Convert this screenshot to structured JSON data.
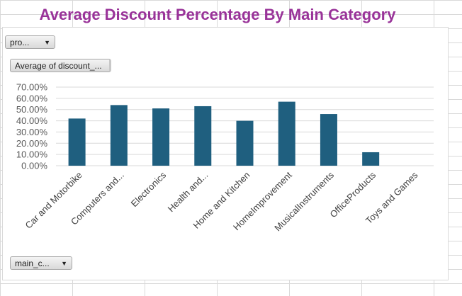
{
  "chart_data": {
    "type": "bar",
    "title": "Average Discount Percentage By Main Category",
    "categories": [
      "Car  and  Motorbike",
      "Computers  and...",
      "Electronics",
      "Health  and...",
      "Home  and  Kitchen",
      "HomeImprovement",
      "MusicalInstruments",
      "OfficeProducts",
      "Toys and Games"
    ],
    "values": [
      42,
      54,
      51,
      53,
      40,
      57,
      46,
      12,
      0
    ],
    "y_tick_labels": [
      "70.00%",
      "60.00%",
      "50.00%",
      "40.00%",
      "30.00%",
      "20.00%",
      "10.00%",
      "0.00%"
    ],
    "y_ticks": [
      70,
      60,
      50,
      40,
      30,
      20,
      10,
      0
    ],
    "ylim": [
      0,
      70
    ],
    "grid": true,
    "legend": "none",
    "bar_color": "#1f5f7f"
  },
  "pivot": {
    "filter_label": "pro...",
    "value_label": "Average of discount_...",
    "axis_label": "main_c..."
  },
  "colors": {
    "title": "#993399",
    "bar": "#1f5f7f",
    "grid": "#d9d9d9"
  }
}
